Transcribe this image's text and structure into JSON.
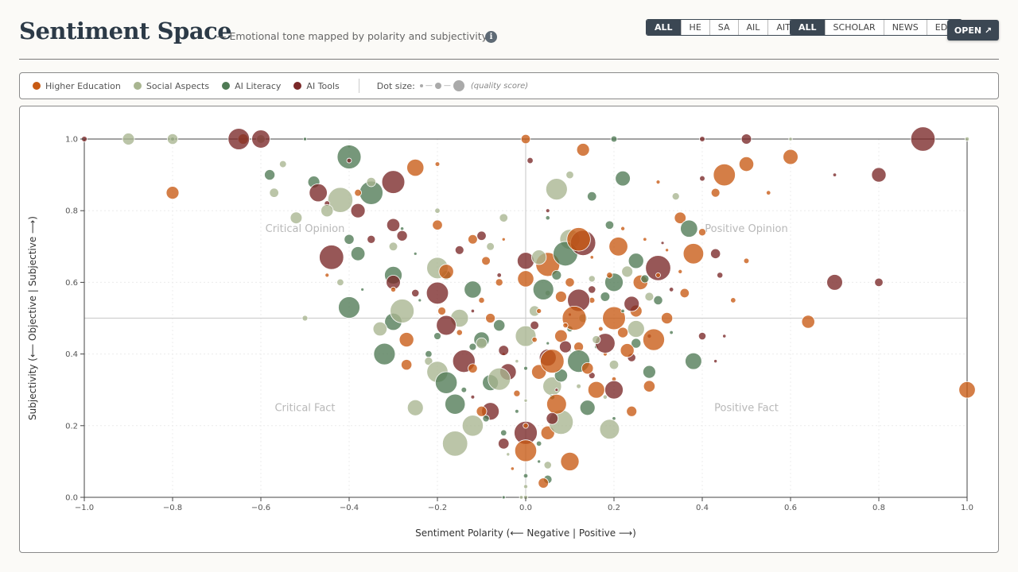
{
  "header": {
    "title": "Sentiment Space",
    "subtitle": "— Emotional tone mapped by polarity and subjectivity",
    "info_icon": "info-icon"
  },
  "filters": {
    "category": [
      {
        "label": "ALL",
        "active": true
      },
      {
        "label": "HE",
        "active": false
      },
      {
        "label": "SA",
        "active": false
      },
      {
        "label": "AIL",
        "active": false
      },
      {
        "label": "AIT",
        "active": false
      }
    ],
    "source": [
      {
        "label": "ALL",
        "active": true
      },
      {
        "label": "SCHOLAR",
        "active": false
      },
      {
        "label": "NEWS",
        "active": false
      },
      {
        "label": "EDU",
        "active": false
      }
    ],
    "open_label": "OPEN ↗"
  },
  "legend": {
    "items": [
      {
        "label": "Higher Education",
        "color": "#c85a13"
      },
      {
        "label": "Social Aspects",
        "color": "#a8b590"
      },
      {
        "label": "AI Literacy",
        "color": "#4f7a54"
      },
      {
        "label": "AI Tools",
        "color": "#7a2828"
      }
    ],
    "size_label": "Dot size:",
    "quality_label": "(quality score)"
  },
  "chart_data": {
    "type": "scatter",
    "xlabel": "Sentiment Polarity (⟵ Negative | Positive ⟶)",
    "ylabel": "Subjectivity (⟵ Objective | Subjective ⟶)",
    "xlim": [
      -1.0,
      1.0
    ],
    "ylim": [
      0.0,
      1.0
    ],
    "x_ticks": [
      -1.0,
      -0.8,
      -0.6,
      -0.4,
      -0.2,
      0.0,
      0.2,
      0.4,
      0.6,
      0.8,
      1.0
    ],
    "y_ticks": [
      0.0,
      0.2,
      0.4,
      0.6,
      0.8,
      1.0
    ],
    "x_tick_labels": [
      "−1.0",
      "−0.8",
      "−0.6",
      "−0.4",
      "−0.2",
      "0.0",
      "0.2",
      "0.4",
      "0.6",
      "0.8",
      "1.0"
    ],
    "y_tick_labels": [
      "0.0",
      "0.2",
      "0.4",
      "0.6",
      "0.8",
      "1.0"
    ],
    "reference_lines": {
      "x": 0.0,
      "y": 0.5
    },
    "grid": true,
    "quadrants": [
      {
        "label": "Critical Opinion",
        "x": -0.5,
        "y": 0.75
      },
      {
        "label": "Positive Opinion",
        "x": 0.5,
        "y": 0.75
      },
      {
        "label": "Critical Fact",
        "x": -0.5,
        "y": 0.25
      },
      {
        "label": "Positive Fact",
        "x": 0.5,
        "y": 0.25
      }
    ],
    "series": [
      {
        "name": "Higher Education",
        "color": "#c85a13",
        "points": [
          [
            -0.64,
            1.0
          ],
          [
            0.0,
            1.0
          ],
          [
            0.13,
            0.97
          ],
          [
            0.5,
            0.93
          ],
          [
            0.6,
            0.95
          ],
          [
            -0.2,
            0.93
          ],
          [
            0.3,
            0.88
          ],
          [
            0.43,
            0.85
          ],
          [
            0.55,
            0.85
          ],
          [
            0.35,
            0.78
          ],
          [
            0.4,
            0.74
          ],
          [
            0.5,
            0.66
          ],
          [
            0.64,
            0.49
          ],
          [
            0.22,
            0.75
          ],
          [
            -0.05,
            0.72
          ],
          [
            0.05,
            0.65
          ],
          [
            0.1,
            0.6
          ],
          [
            -0.1,
            0.55
          ],
          [
            0.15,
            0.55
          ],
          [
            0.2,
            0.5
          ],
          [
            0.25,
            0.52
          ],
          [
            -0.3,
            0.58
          ],
          [
            -0.15,
            0.46
          ],
          [
            0.08,
            0.45
          ],
          [
            0.12,
            0.42
          ],
          [
            0.18,
            0.4
          ],
          [
            -0.05,
            0.4
          ],
          [
            0.03,
            0.35
          ],
          [
            0.2,
            0.33
          ],
          [
            0.28,
            0.31
          ],
          [
            0.24,
            0.24
          ],
          [
            -0.03,
            0.08
          ],
          [
            0.1,
            0.1
          ],
          [
            0.05,
            0.18
          ],
          [
            -0.2,
            0.76
          ],
          [
            -0.12,
            0.72
          ],
          [
            0.0,
            0.61
          ],
          [
            0.15,
            0.67
          ],
          [
            0.3,
            0.62
          ],
          [
            0.36,
            0.57
          ],
          [
            0.08,
            0.56
          ],
          [
            -0.18,
            0.63
          ],
          [
            -0.08,
            0.5
          ],
          [
            0.22,
            0.46
          ],
          [
            0.14,
            0.36
          ],
          [
            -0.12,
            0.36
          ],
          [
            -0.27,
            0.44
          ],
          [
            -0.27,
            0.37
          ],
          [
            0.32,
            0.69
          ],
          [
            0.26,
            0.6
          ],
          [
            0.03,
            0.52
          ],
          [
            0.11,
            0.5
          ],
          [
            0.17,
            0.47
          ],
          [
            -0.02,
            0.29
          ],
          [
            0.07,
            0.26
          ],
          [
            0.0,
            0.13
          ],
          [
            0.04,
            0.04
          ],
          [
            -0.38,
            0.85
          ],
          [
            -0.25,
            0.92
          ],
          [
            0.45,
            0.9
          ],
          [
            0.47,
            0.55
          ],
          [
            -0.45,
            0.62
          ],
          [
            0.38,
            0.68
          ],
          [
            0.32,
            0.5
          ],
          [
            0.19,
            0.62
          ],
          [
            -0.06,
            0.6
          ],
          [
            0.02,
            0.44
          ],
          [
            0.16,
            0.3
          ],
          [
            -0.1,
            0.24
          ],
          [
            0.0,
            0.2
          ],
          [
            0.23,
            0.41
          ],
          [
            0.29,
            0.44
          ],
          [
            0.06,
            0.38
          ],
          [
            -0.19,
            0.52
          ],
          [
            0.12,
            0.72
          ],
          [
            0.21,
            0.7
          ],
          [
            -0.09,
            0.66
          ],
          [
            0.27,
            0.72
          ],
          [
            0.09,
            0.48
          ],
          [
            0.35,
            0.63
          ],
          [
            1.0,
            0.3
          ],
          [
            -0.8,
            0.85
          ]
        ]
      },
      {
        "name": "Social Aspects",
        "color": "#a8b590",
        "points": [
          [
            -0.9,
            1.0
          ],
          [
            -0.8,
            1.0
          ],
          [
            -0.6,
            1.0
          ],
          [
            0.6,
            1.0
          ],
          [
            1.0,
            1.0
          ],
          [
            -0.4,
            0.98
          ],
          [
            -0.57,
            0.85
          ],
          [
            -0.52,
            0.78
          ],
          [
            -0.42,
            0.83
          ],
          [
            -0.55,
            0.93
          ],
          [
            0.34,
            0.84
          ],
          [
            0.07,
            0.86
          ],
          [
            -0.05,
            0.78
          ],
          [
            -0.2,
            0.8
          ],
          [
            -0.3,
            0.7
          ],
          [
            -0.42,
            0.6
          ],
          [
            0.1,
            0.72
          ],
          [
            0.05,
            0.57
          ],
          [
            -0.15,
            0.5
          ],
          [
            0.0,
            0.45
          ],
          [
            0.1,
            0.41
          ],
          [
            -0.22,
            0.38
          ],
          [
            -0.28,
            0.52
          ],
          [
            0.2,
            0.37
          ],
          [
            -0.2,
            0.35
          ],
          [
            0.06,
            0.31
          ],
          [
            0.18,
            0.28
          ],
          [
            -0.12,
            0.2
          ],
          [
            0.0,
            0.27
          ],
          [
            0.19,
            0.19
          ],
          [
            -0.04,
            0.12
          ],
          [
            0.05,
            0.09
          ],
          [
            0.0,
            0.03
          ],
          [
            -0.01,
            0.0
          ],
          [
            0.13,
            0.5
          ],
          [
            0.25,
            0.47
          ],
          [
            -0.33,
            0.47
          ],
          [
            -0.2,
            0.64
          ],
          [
            0.15,
            0.61
          ],
          [
            -0.08,
            0.7
          ],
          [
            0.28,
            0.56
          ],
          [
            0.02,
            0.52
          ],
          [
            0.08,
            0.21
          ],
          [
            -0.25,
            0.25
          ],
          [
            -0.16,
            0.15
          ],
          [
            -0.02,
            0.38
          ],
          [
            0.16,
            0.44
          ],
          [
            -0.35,
            0.88
          ],
          [
            0.1,
            0.9
          ],
          [
            0.0,
            0.0
          ],
          [
            0.23,
            0.63
          ],
          [
            -0.1,
            0.43
          ],
          [
            0.03,
            0.67
          ],
          [
            -0.06,
            0.33
          ],
          [
            0.12,
            0.31
          ],
          [
            -0.45,
            0.8
          ],
          [
            -0.5,
            0.5
          ]
        ]
      },
      {
        "name": "AI Literacy",
        "color": "#4f7a54",
        "points": [
          [
            -0.8,
            1.0
          ],
          [
            -0.5,
            1.0
          ],
          [
            0.2,
            1.0
          ],
          [
            -0.58,
            0.9
          ],
          [
            -0.48,
            0.88
          ],
          [
            -0.35,
            0.85
          ],
          [
            -0.4,
            0.95
          ],
          [
            0.22,
            0.89
          ],
          [
            0.15,
            0.84
          ],
          [
            0.05,
            0.78
          ],
          [
            -0.28,
            0.75
          ],
          [
            -0.4,
            0.72
          ],
          [
            -0.3,
            0.62
          ],
          [
            -0.18,
            0.62
          ],
          [
            0.25,
            0.66
          ],
          [
            0.3,
            0.55
          ],
          [
            0.18,
            0.56
          ],
          [
            -0.12,
            0.58
          ],
          [
            0.04,
            0.58
          ],
          [
            -0.3,
            0.49
          ],
          [
            -0.22,
            0.4
          ],
          [
            -0.1,
            0.44
          ],
          [
            0.05,
            0.43
          ],
          [
            0.16,
            0.42
          ],
          [
            0.28,
            0.35
          ],
          [
            -0.18,
            0.32
          ],
          [
            -0.08,
            0.32
          ],
          [
            0.06,
            0.28
          ],
          [
            0.2,
            0.22
          ],
          [
            -0.16,
            0.26
          ],
          [
            -0.05,
            0.18
          ],
          [
            0.03,
            0.15
          ],
          [
            0.0,
            0.06
          ],
          [
            0.05,
            0.05
          ],
          [
            -0.05,
            0.0
          ],
          [
            -0.12,
            0.42
          ],
          [
            0.1,
            0.47
          ],
          [
            0.22,
            0.52
          ],
          [
            -0.24,
            0.55
          ],
          [
            -0.06,
            0.48
          ],
          [
            0.0,
            0.36
          ],
          [
            0.12,
            0.38
          ],
          [
            -0.32,
            0.4
          ],
          [
            0.2,
            0.6
          ],
          [
            -0.38,
            0.68
          ],
          [
            0.09,
            0.68
          ],
          [
            0.37,
            0.75
          ],
          [
            -0.4,
            0.53
          ],
          [
            0.25,
            0.43
          ],
          [
            0.14,
            0.25
          ],
          [
            -0.09,
            0.22
          ],
          [
            0.03,
            0.1
          ],
          [
            -0.14,
            0.3
          ],
          [
            0.08,
            0.34
          ],
          [
            -0.2,
            0.45
          ],
          [
            0.33,
            0.46
          ],
          [
            0.19,
            0.76
          ],
          [
            -0.25,
            0.68
          ],
          [
            0.07,
            0.62
          ],
          [
            -0.02,
            0.24
          ],
          [
            0.27,
            0.61
          ],
          [
            0.38,
            0.38
          ],
          [
            -0.37,
            0.58
          ]
        ]
      },
      {
        "name": "AI Tools",
        "color": "#7a2828",
        "points": [
          [
            -1.0,
            1.0
          ],
          [
            -0.65,
            1.0
          ],
          [
            -0.6,
            1.0
          ],
          [
            0.4,
            1.0
          ],
          [
            0.5,
            1.0
          ],
          [
            0.9,
            1.0
          ],
          [
            -0.4,
            0.94
          ],
          [
            0.01,
            0.94
          ],
          [
            -0.45,
            0.82
          ],
          [
            -0.47,
            0.85
          ],
          [
            -0.3,
            0.88
          ],
          [
            0.4,
            0.89
          ],
          [
            0.8,
            0.9
          ],
          [
            0.7,
            0.9
          ],
          [
            -0.38,
            0.8
          ],
          [
            -0.28,
            0.73
          ],
          [
            -0.1,
            0.73
          ],
          [
            0.05,
            0.8
          ],
          [
            -0.44,
            0.67
          ],
          [
            -0.3,
            0.6
          ],
          [
            -0.25,
            0.57
          ],
          [
            0.0,
            0.66
          ],
          [
            0.15,
            0.58
          ],
          [
            0.3,
            0.64
          ],
          [
            0.43,
            0.68
          ],
          [
            0.44,
            0.62
          ],
          [
            0.7,
            0.6
          ],
          [
            -0.18,
            0.48
          ],
          [
            0.1,
            0.51
          ],
          [
            0.28,
            0.45
          ],
          [
            -0.05,
            0.41
          ],
          [
            0.15,
            0.34
          ],
          [
            0.07,
            0.3
          ],
          [
            -0.12,
            0.28
          ],
          [
            -0.08,
            0.24
          ],
          [
            0.0,
            0.18
          ],
          [
            0.4,
            0.45
          ],
          [
            0.45,
            0.45
          ],
          [
            -0.3,
            0.76
          ],
          [
            0.12,
            0.55
          ],
          [
            -0.2,
            0.57
          ],
          [
            0.24,
            0.54
          ],
          [
            0.02,
            0.48
          ],
          [
            -0.14,
            0.38
          ],
          [
            0.18,
            0.43
          ],
          [
            0.09,
            0.42
          ],
          [
            0.2,
            0.3
          ],
          [
            -0.04,
            0.35
          ],
          [
            0.13,
            0.71
          ],
          [
            -0.06,
            0.62
          ],
          [
            0.31,
            0.71
          ],
          [
            -0.35,
            0.72
          ],
          [
            0.05,
            0.39
          ],
          [
            0.24,
            0.39
          ],
          [
            -0.15,
            0.69
          ],
          [
            0.33,
            0.58
          ],
          [
            -0.05,
            0.15
          ],
          [
            -0.12,
            0.52
          ],
          [
            0.06,
            0.22
          ],
          [
            0.8,
            0.6
          ],
          [
            0.43,
            0.38
          ]
        ]
      }
    ]
  }
}
